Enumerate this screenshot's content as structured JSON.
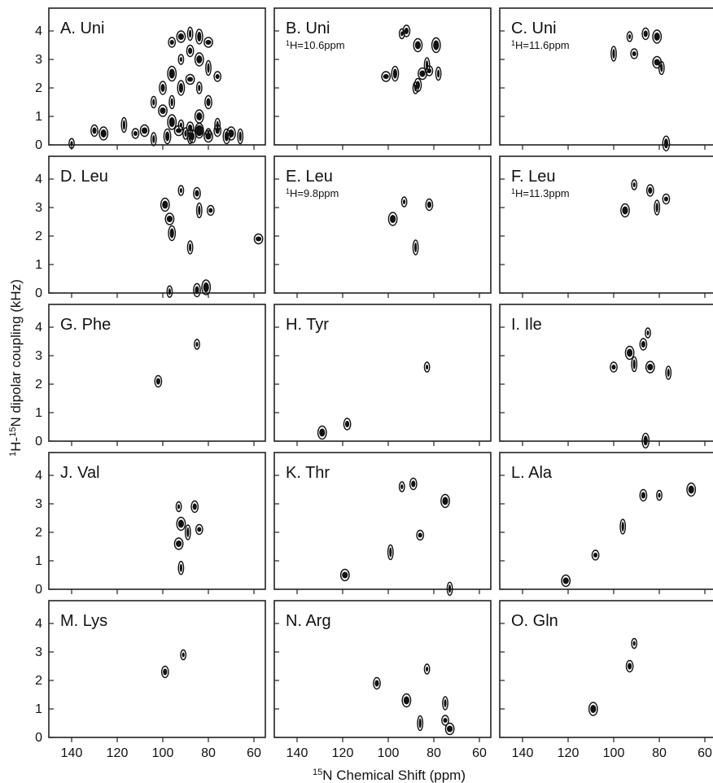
{
  "axes": {
    "xlabel_sup": "15",
    "xlabel_text": "N Chemical Shift (ppm)",
    "ylabel_sup1": "1",
    "ylabel_mid": "H-",
    "ylabel_sup2": "15",
    "ylabel_text": "N dipolar coupling (kHz)",
    "x_ticks": [
      140,
      120,
      100,
      80,
      60
    ],
    "y_ticks": [
      0,
      1,
      2,
      3,
      4
    ]
  },
  "chart_data": [
    {
      "type": "scatter",
      "title": "A. Uni",
      "subtitle": "",
      "xlim": [
        150,
        55
      ],
      "ylim": [
        0,
        4.8
      ],
      "x": [
        140,
        130,
        126,
        117,
        112,
        108,
        104,
        98,
        93,
        90,
        87,
        84,
        80,
        76,
        70,
        66,
        96,
        92,
        88,
        84,
        80,
        104,
        100,
        96,
        92,
        88,
        84,
        80,
        76,
        100,
        96,
        92,
        88,
        84,
        80,
        96,
        92,
        88,
        84,
        88,
        84,
        80,
        76,
        72
      ],
      "y": [
        0.05,
        0.5,
        0.4,
        0.7,
        0.4,
        0.5,
        0.2,
        0.3,
        0.5,
        0.4,
        0.3,
        0.5,
        0.4,
        0.5,
        0.4,
        0.3,
        3.6,
        3.8,
        3.9,
        3.8,
        3.6,
        1.5,
        2.0,
        2.5,
        3.0,
        3.3,
        3.0,
        2.7,
        2.4,
        1.2,
        1.5,
        2.0,
        2.3,
        2.0,
        1.5,
        0.8,
        0.7,
        0.6,
        1.0,
        0.3,
        0.5,
        0.3,
        0.7,
        0.3
      ]
    },
    {
      "type": "scatter",
      "title": "B. Uni",
      "subtitle": "H=10.6ppm",
      "subtitle_sup": "1",
      "xlim": [
        150,
        55
      ],
      "ylim": [
        0,
        4.8
      ],
      "x": [
        94,
        92,
        87,
        83,
        82,
        85,
        78,
        97,
        101,
        88,
        87,
        79
      ],
      "y": [
        3.9,
        4.0,
        3.5,
        2.8,
        2.6,
        2.5,
        2.5,
        2.5,
        2.4,
        2.0,
        2.1,
        3.5
      ]
    },
    {
      "type": "scatter",
      "title": "C. Uni",
      "subtitle": "H=11.6ppm",
      "subtitle_sup": "1",
      "xlim": [
        150,
        55
      ],
      "ylim": [
        0,
        4.8
      ],
      "x": [
        93,
        86,
        81,
        100,
        91,
        81,
        79,
        77
      ],
      "y": [
        3.8,
        3.9,
        3.8,
        3.2,
        3.2,
        2.9,
        2.7,
        0.05
      ]
    },
    {
      "type": "scatter",
      "title": "D. Leu",
      "subtitle": "",
      "xlim": [
        150,
        55
      ],
      "ylim": [
        0,
        4.8
      ],
      "x": [
        92,
        85,
        99,
        84,
        79,
        97,
        88,
        96,
        58,
        97,
        85,
        81
      ],
      "y": [
        3.6,
        3.5,
        3.1,
        2.9,
        2.9,
        2.6,
        1.6,
        2.1,
        1.9,
        0.05,
        0.1,
        0.2
      ]
    },
    {
      "type": "scatter",
      "title": "E. Leu",
      "subtitle": "H=9.8ppm",
      "subtitle_sup": "1",
      "xlim": [
        150,
        55
      ],
      "ylim": [
        0,
        4.8
      ],
      "x": [
        93,
        82,
        98,
        88
      ],
      "y": [
        3.2,
        3.1,
        2.6,
        1.6
      ]
    },
    {
      "type": "scatter",
      "title": "F. Leu",
      "subtitle": "H=11.3ppm",
      "subtitle_sup": "1",
      "xlim": [
        150,
        55
      ],
      "ylim": [
        0,
        4.8
      ],
      "x": [
        91,
        84,
        95,
        81,
        77
      ],
      "y": [
        3.8,
        3.6,
        2.9,
        3.0,
        3.3
      ]
    },
    {
      "type": "scatter",
      "title": "G. Phe",
      "subtitle": "",
      "xlim": [
        150,
        55
      ],
      "ylim": [
        0,
        4.8
      ],
      "x": [
        85,
        102
      ],
      "y": [
        3.4,
        2.1
      ]
    },
    {
      "type": "scatter",
      "title": "H. Tyr",
      "subtitle": "",
      "xlim": [
        150,
        55
      ],
      "ylim": [
        0,
        4.8
      ],
      "x": [
        83,
        118,
        129
      ],
      "y": [
        2.6,
        0.6,
        0.3
      ]
    },
    {
      "type": "scatter",
      "title": "I. Ile",
      "subtitle": "",
      "xlim": [
        150,
        55
      ],
      "ylim": [
        0,
        4.8
      ],
      "x": [
        85,
        87,
        93,
        91,
        100,
        84,
        76,
        86
      ],
      "y": [
        3.8,
        3.4,
        3.1,
        2.7,
        2.6,
        2.6,
        2.4,
        0.02
      ]
    },
    {
      "type": "scatter",
      "title": "J. Val",
      "subtitle": "",
      "xlim": [
        150,
        55
      ],
      "ylim": [
        0,
        4.8
      ],
      "x": [
        93,
        86,
        92,
        89,
        84,
        93,
        92
      ],
      "y": [
        2.9,
        2.9,
        2.3,
        2.0,
        2.1,
        1.6,
        0.75
      ]
    },
    {
      "type": "scatter",
      "title": "K. Thr",
      "subtitle": "",
      "xlim": [
        150,
        55
      ],
      "ylim": [
        0,
        4.8
      ],
      "x": [
        94,
        89,
        75,
        99,
        86,
        119,
        73
      ],
      "y": [
        3.6,
        3.7,
        3.1,
        1.3,
        1.9,
        0.5,
        0.02
      ]
    },
    {
      "type": "scatter",
      "title": "L. Ala",
      "subtitle": "",
      "xlim": [
        150,
        55
      ],
      "ylim": [
        0,
        4.8
      ],
      "x": [
        80,
        87,
        66,
        96,
        108,
        121
      ],
      "y": [
        3.3,
        3.3,
        3.5,
        2.2,
        1.2,
        0.3
      ]
    },
    {
      "type": "scatter",
      "title": "M. Lys",
      "subtitle": "",
      "xlim": [
        150,
        55
      ],
      "ylim": [
        0,
        4.8
      ],
      "x": [
        91,
        99
      ],
      "y": [
        2.9,
        2.3
      ]
    },
    {
      "type": "scatter",
      "title": "N. Arg",
      "subtitle": "",
      "xlim": [
        150,
        55
      ],
      "ylim": [
        0,
        4.8
      ],
      "x": [
        83,
        105,
        92,
        86,
        75,
        73,
        75
      ],
      "y": [
        2.4,
        1.9,
        1.3,
        0.5,
        0.6,
        0.3,
        1.2
      ]
    },
    {
      "type": "scatter",
      "title": "O. Gln",
      "subtitle": "",
      "xlim": [
        150,
        55
      ],
      "ylim": [
        0,
        4.8
      ],
      "x": [
        91,
        93,
        109
      ],
      "y": [
        3.3,
        2.5,
        1.0
      ]
    }
  ]
}
